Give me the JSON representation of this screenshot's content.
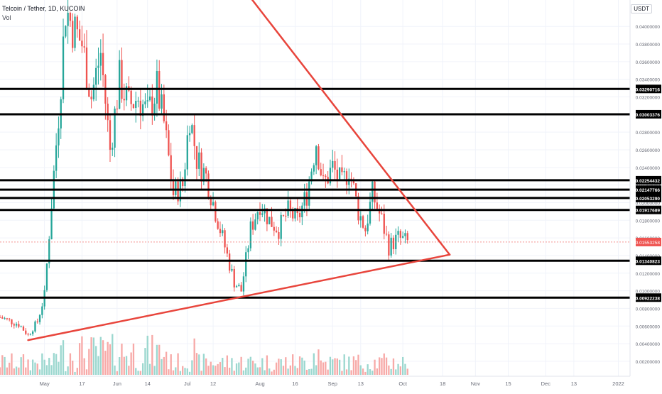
{
  "header": {
    "title": "Telcoin / Tether, 1D, KUCOIN",
    "volume_label": "Vol",
    "currency_label": "USDT"
  },
  "colors": {
    "up": "#26a69a",
    "down": "#ef5350",
    "up_volume": "#9bd7cf",
    "down_volume": "#f7a9a7",
    "trendline": "#e8453c",
    "level_line": "#000000",
    "grid": "#f0f3fa",
    "axis_text": "#6a6d78",
    "last_price_bg": "#ef5350"
  },
  "chart_data": {
    "type": "candlestick",
    "title": "Telcoin / Tether, 1D, KUCOIN",
    "ylim": [
      0.0003,
      0.043
    ],
    "y_ticks": [
      {
        "value": 0.002,
        "label": "0.00200000"
      },
      {
        "value": 0.004,
        "label": "0.00400000"
      },
      {
        "value": 0.006,
        "label": "0.00600000"
      },
      {
        "value": 0.008,
        "label": "0.00800000"
      },
      {
        "value": 0.01,
        "label": "0.01000000"
      },
      {
        "value": 0.012,
        "label": "0.01200000"
      },
      {
        "value": 0.014,
        "label": "0.01400000"
      },
      {
        "value": 0.016,
        "label": "0.01600000"
      },
      {
        "value": 0.018,
        "label": "0.01800000"
      },
      {
        "value": 0.02,
        "label": "0.02000000"
      },
      {
        "value": 0.022,
        "label": "0.02200000"
      },
      {
        "value": 0.024,
        "label": "0.02400000"
      },
      {
        "value": 0.026,
        "label": "0.02600000"
      },
      {
        "value": 0.028,
        "label": "0.02800000"
      },
      {
        "value": 0.03,
        "label": "0.03000000"
      },
      {
        "value": 0.032,
        "label": "0.03200000"
      },
      {
        "value": 0.034,
        "label": "0.03400000"
      },
      {
        "value": 0.036,
        "label": "0.03600000"
      },
      {
        "value": 0.038,
        "label": "0.03800000"
      },
      {
        "value": 0.04,
        "label": "0.04000000"
      }
    ],
    "x_ticks": [
      {
        "date": "2021-05-01",
        "label": "May"
      },
      {
        "date": "2021-05-17",
        "label": "17"
      },
      {
        "date": "2021-06-01",
        "label": "Jun"
      },
      {
        "date": "2021-06-14",
        "label": "14"
      },
      {
        "date": "2021-07-01",
        "label": "Jul"
      },
      {
        "date": "2021-07-12",
        "label": "12"
      },
      {
        "date": "2021-08-01",
        "label": "Aug"
      },
      {
        "date": "2021-08-16",
        "label": "16"
      },
      {
        "date": "2021-09-01",
        "label": "Sep"
      },
      {
        "date": "2021-09-13",
        "label": "13"
      },
      {
        "date": "2021-10-01",
        "label": "Oct"
      },
      {
        "date": "2021-10-18",
        "label": "18"
      },
      {
        "date": "2021-11-01",
        "label": "Nov"
      },
      {
        "date": "2021-11-15",
        "label": "15"
      },
      {
        "date": "2021-12-01",
        "label": "Dec"
      },
      {
        "date": "2021-12-13",
        "label": "13"
      },
      {
        "date": "2022-01-01",
        "label": "2022"
      }
    ],
    "x_range": [
      "2021-04-12",
      "2022-01-06"
    ],
    "price_path": [
      [
        "2021-04-12",
        0.007
      ],
      [
        "2021-04-20",
        0.0062
      ],
      [
        "2021-04-24",
        0.005
      ],
      [
        "2021-04-28",
        0.0065
      ],
      [
        "2021-05-01",
        0.0095
      ],
      [
        "2021-05-04",
        0.02
      ],
      [
        "2021-05-07",
        0.03
      ],
      [
        "2021-05-10",
        0.042
      ],
      [
        "2021-05-13",
        0.04
      ],
      [
        "2021-05-17",
        0.038
      ],
      [
        "2021-05-21",
        0.032
      ],
      [
        "2021-05-25",
        0.037
      ],
      [
        "2021-05-29",
        0.026
      ],
      [
        "2021-06-02",
        0.034
      ],
      [
        "2021-06-06",
        0.031
      ],
      [
        "2021-06-10",
        0.032
      ],
      [
        "2021-06-14",
        0.03
      ],
      [
        "2021-06-18",
        0.033
      ],
      [
        "2021-06-21",
        0.029
      ],
      [
        "2021-06-25",
        0.021
      ],
      [
        "2021-06-29",
        0.022
      ],
      [
        "2021-07-02",
        0.03
      ],
      [
        "2021-07-05",
        0.025
      ],
      [
        "2021-07-09",
        0.023
      ],
      [
        "2021-07-13",
        0.019
      ],
      [
        "2021-07-17",
        0.015
      ],
      [
        "2021-07-21",
        0.011
      ],
      [
        "2021-07-24",
        0.01
      ],
      [
        "2021-07-28",
        0.017
      ],
      [
        "2021-08-01",
        0.02
      ],
      [
        "2021-08-05",
        0.018
      ],
      [
        "2021-08-09",
        0.017
      ],
      [
        "2021-08-13",
        0.019
      ],
      [
        "2021-08-17",
        0.018
      ],
      [
        "2021-08-21",
        0.021
      ],
      [
        "2021-08-25",
        0.027
      ],
      [
        "2021-08-28",
        0.022
      ],
      [
        "2021-09-01",
        0.024
      ],
      [
        "2021-09-05",
        0.022
      ],
      [
        "2021-09-08",
        0.024
      ],
      [
        "2021-09-12",
        0.019
      ],
      [
        "2021-09-15",
        0.017
      ],
      [
        "2021-09-18",
        0.021
      ],
      [
        "2021-09-22",
        0.018
      ],
      [
        "2021-09-25",
        0.015
      ],
      [
        "2021-09-29",
        0.016
      ],
      [
        "2021-10-03",
        0.0155
      ]
    ],
    "last_price": {
      "value": 0.01553258,
      "label": "0.01553258"
    },
    "horizontal_levels": [
      {
        "value": 0.03290716,
        "label": "0.03290716"
      },
      {
        "value": 0.03003376,
        "label": "0.03003376"
      },
      {
        "value": 0.02254432,
        "label": "0.02254432"
      },
      {
        "value": 0.02147766,
        "label": "0.02147766"
      },
      {
        "value": 0.0205329,
        "label": "0.02053290"
      },
      {
        "value": 0.01917689,
        "label": "0.01917689"
      },
      {
        "value": 0.01340823,
        "label": "0.01340823"
      },
      {
        "value": 0.00922238,
        "label": "0.00922238"
      }
    ],
    "trendlines": [
      {
        "name": "descending-resistance",
        "from": [
          "2021-07-27",
          0.0436
        ],
        "to": [
          "2021-10-21",
          0.0141
        ]
      },
      {
        "name": "ascending-support",
        "from": [
          "2021-04-24",
          0.0044
        ],
        "to": [
          "2021-10-21",
          0.0141
        ]
      }
    ],
    "grid": true,
    "volume_pane": true
  }
}
